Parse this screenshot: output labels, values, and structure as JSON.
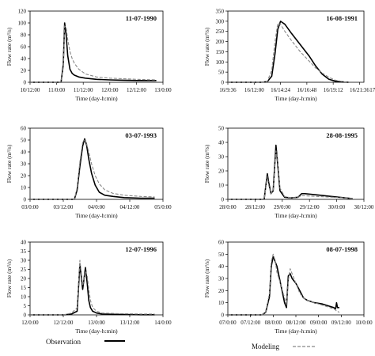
{
  "legend": {
    "observation": "Observation",
    "modeling": "Modeling"
  },
  "colors": {
    "observation": "#000000",
    "modeling": "#888888"
  },
  "chart_data": [
    {
      "type": "line",
      "title": "11-07-1990",
      "xlabel": "Time (day-h:min)",
      "ylabel": "Flow rate (m³/s)",
      "ylim": [
        0,
        120
      ],
      "yticks": [
        0,
        20,
        40,
        60,
        80,
        100,
        120
      ],
      "xlim": [
        0,
        60
      ],
      "xticks": [
        0,
        12,
        24,
        36,
        48,
        60
      ],
      "xtick_labels": [
        "10/12:00",
        "11/0:00",
        "11/12:00",
        "12/0:00",
        "12/12:00",
        "13/0:00"
      ],
      "series": [
        {
          "name": "Observation",
          "x": [
            0,
            12,
            14,
            15,
            15.6,
            16.3,
            17,
            18,
            19,
            20,
            22,
            25,
            30,
            36,
            42,
            48,
            52,
            57
          ],
          "y": [
            0,
            0,
            0,
            30,
            100,
            80,
            45,
            22,
            15,
            12,
            9,
            7,
            5,
            4,
            3.5,
            3,
            3,
            3
          ]
        },
        {
          "name": "Modeling",
          "x": [
            0,
            12,
            14,
            15,
            15.6,
            16.3,
            17,
            18,
            19,
            20,
            22,
            25,
            30,
            36,
            42,
            48,
            52,
            57
          ],
          "y": [
            0,
            0,
            0,
            25,
            95,
            92,
            72,
            52,
            40,
            32,
            22,
            14,
            9,
            7,
            6,
            5,
            4.5,
            4
          ]
        }
      ]
    },
    {
      "type": "line",
      "title": "16-08-1991",
      "xlabel": "Time (day-h:min)",
      "ylabel": "Flow rate (m³/s)",
      "ylim": [
        0,
        350
      ],
      "yticks": [
        0,
        50,
        100,
        150,
        200,
        250,
        300,
        350
      ],
      "xlim": [
        0,
        12.4
      ],
      "xticks": [
        0,
        2.4,
        4.8,
        7.2,
        9.6,
        12,
        14.4
      ],
      "xtick_labels": [
        "16/9:36",
        "16/12:00",
        "16/14:24",
        "16/16:48",
        "16/19:12",
        "16/21:36",
        "17/0:00"
      ],
      "series": [
        {
          "name": "Observation",
          "x": [
            0,
            3.0,
            3.6,
            4.0,
            4.3,
            4.55,
            4.8,
            5.2,
            5.8,
            6.6,
            7.4,
            8.0,
            8.6,
            9.2,
            9.8,
            10.6,
            11.0
          ],
          "y": [
            0,
            0,
            3,
            30,
            140,
            260,
            300,
            285,
            240,
            185,
            130,
            80,
            40,
            15,
            5,
            1,
            0
          ]
        },
        {
          "name": "Modeling",
          "x": [
            0,
            3.0,
            3.6,
            4.0,
            4.3,
            4.55,
            4.8,
            5.2,
            5.8,
            6.6,
            7.4,
            8.0,
            8.6,
            9.2,
            9.8,
            10.6,
            11.0
          ],
          "y": [
            0,
            0,
            4,
            60,
            200,
            290,
            285,
            250,
            205,
            150,
            105,
            70,
            45,
            25,
            10,
            2,
            0
          ]
        }
      ]
    },
    {
      "type": "line",
      "title": "03-07-1993",
      "xlabel": "Time (day-h:min)",
      "ylabel": "Flow rate (m³/s)",
      "ylim": [
        0,
        60
      ],
      "yticks": [
        0,
        10,
        20,
        30,
        40,
        50,
        60
      ],
      "xlim": [
        0,
        48
      ],
      "xticks": [
        0,
        12,
        24,
        36,
        48
      ],
      "xtick_labels": [
        "03/0:00",
        "03/12:00",
        "04/0:00",
        "04/12:00",
        "05/0:00"
      ],
      "series": [
        {
          "name": "Observation",
          "x": [
            0,
            14,
            16,
            17,
            18,
            19,
            19.7,
            20.4,
            21.2,
            22.2,
            23.5,
            25,
            27,
            30,
            34,
            40,
            45
          ],
          "y": [
            0,
            0,
            0,
            8,
            28,
            45,
            51,
            46,
            34,
            22,
            12,
            6,
            3.5,
            2.5,
            1.5,
            1,
            1
          ]
        },
        {
          "name": "Modeling",
          "x": [
            0,
            14,
            16,
            17,
            18,
            19,
            19.7,
            20.4,
            21.2,
            22.2,
            23.5,
            25,
            27,
            30,
            34,
            40,
            45
          ],
          "y": [
            0,
            0,
            0,
            10,
            32,
            48,
            50,
            47,
            40,
            30,
            20,
            13,
            8,
            5,
            3.5,
            2.5,
            2
          ]
        }
      ]
    },
    {
      "type": "line",
      "title": "28-08-1995",
      "xlabel": "Time (day-h:min)",
      "ylabel": "Flow rate (m³/s)",
      "ylim": [
        0,
        50
      ],
      "yticks": [
        0,
        10,
        20,
        30,
        40,
        50
      ],
      "xlim": [
        0,
        60
      ],
      "xticks": [
        0,
        12,
        24,
        36,
        48,
        60
      ],
      "xtick_labels": [
        "28/0:00",
        "28/12:00",
        "29/0:00",
        "29/12:00",
        "30/0:00",
        "30/12:00"
      ],
      "series": [
        {
          "name": "Observation",
          "x": [
            0,
            12,
            16,
            17.4,
            18,
            19,
            20,
            21.2,
            21.8,
            23,
            25,
            28,
            31,
            32.5,
            34,
            40,
            46,
            52,
            55
          ],
          "y": [
            0,
            0,
            0,
            18,
            12,
            4,
            6,
            38,
            28,
            6,
            1.5,
            1,
            1.5,
            4,
            4,
            3,
            2,
            1,
            0.5
          ]
        },
        {
          "name": "Modeling",
          "x": [
            0,
            12,
            16,
            17.4,
            18,
            19,
            20,
            21.2,
            21.8,
            23,
            25,
            28,
            31,
            32.5,
            34,
            40,
            46,
            52,
            55
          ],
          "y": [
            0,
            0,
            0,
            16,
            10,
            4,
            6,
            34,
            30,
            8,
            2,
            1,
            1.5,
            2.5,
            2.5,
            2,
            1.5,
            1,
            0.5
          ]
        }
      ]
    },
    {
      "type": "line",
      "title": "12-07-1996",
      "xlabel": "Time (day-h:min)",
      "ylabel": "Flow rate (m³/s)",
      "ylim": [
        0,
        40
      ],
      "yticks": [
        0,
        5,
        10,
        15,
        20,
        25,
        30,
        35,
        40
      ],
      "xlim": [
        0,
        48
      ],
      "xticks": [
        0,
        12,
        24,
        36,
        48
      ],
      "xtick_labels": [
        "12/0:00",
        "12/12:00",
        "13/0:00",
        "13/12:00",
        "14/0:00"
      ],
      "series": [
        {
          "name": "Observation",
          "x": [
            0,
            12,
            15,
            17,
            18,
            19,
            20,
            20.6,
            21.2,
            21.8,
            22.6,
            24,
            26,
            30,
            35,
            40,
            45
          ],
          "y": [
            0,
            0,
            0.5,
            2,
            28,
            14,
            26,
            18,
            8,
            4,
            2,
            1,
            0.5,
            0.3,
            0.2,
            0.1,
            0.1
          ]
        },
        {
          "name": "Modeling",
          "x": [
            0,
            12,
            15,
            17,
            18,
            19,
            20,
            20.6,
            21.2,
            21.8,
            22.6,
            24,
            26,
            30,
            35,
            40,
            45
          ],
          "y": [
            0,
            0,
            1,
            4,
            30,
            16,
            24,
            22,
            14,
            8,
            4,
            2,
            1,
            0.8,
            0.6,
            0.5,
            0.5
          ]
        }
      ]
    },
    {
      "type": "line",
      "title": "08-07-1998",
      "xlabel": "Time (day-h:min)",
      "ylabel": "Flow rate (m³/s)",
      "ylim": [
        0,
        60
      ],
      "yticks": [
        0,
        10,
        20,
        30,
        40,
        50,
        60
      ],
      "xlim": [
        0,
        72
      ],
      "xticks": [
        0,
        12,
        24,
        36,
        48,
        60,
        72
      ],
      "xtick_labels": [
        "07/0:00",
        "07/12:00",
        "08/0:00",
        "08/12:00",
        "09/0:00",
        "09/12:00",
        "10/0:00"
      ],
      "series": [
        {
          "name": "Observation",
          "x": [
            0,
            18,
            20,
            22,
            23,
            24,
            25,
            26,
            28,
            30,
            31,
            32,
            33,
            34,
            36,
            38,
            40,
            42,
            46,
            50,
            54,
            56,
            57,
            57.5,
            58,
            59
          ],
          "y": [
            0,
            0,
            2,
            15,
            40,
            48,
            44,
            40,
            25,
            10,
            6,
            32,
            34,
            30,
            26,
            20,
            14,
            12,
            10,
            9,
            7,
            6,
            5,
            10,
            6,
            6
          ]
        },
        {
          "name": "Modeling",
          "x": [
            0,
            18,
            20,
            22,
            23,
            24,
            25,
            26,
            28,
            30,
            31,
            32,
            33,
            34,
            36,
            38,
            40,
            42,
            46,
            50,
            54,
            56,
            57,
            57.5,
            58,
            59
          ],
          "y": [
            0,
            0,
            2,
            18,
            44,
            50,
            45,
            35,
            25,
            14,
            8,
            28,
            38,
            34,
            26,
            18,
            14,
            12,
            10,
            8,
            6,
            5,
            4,
            3,
            3,
            2
          ]
        }
      ]
    }
  ]
}
